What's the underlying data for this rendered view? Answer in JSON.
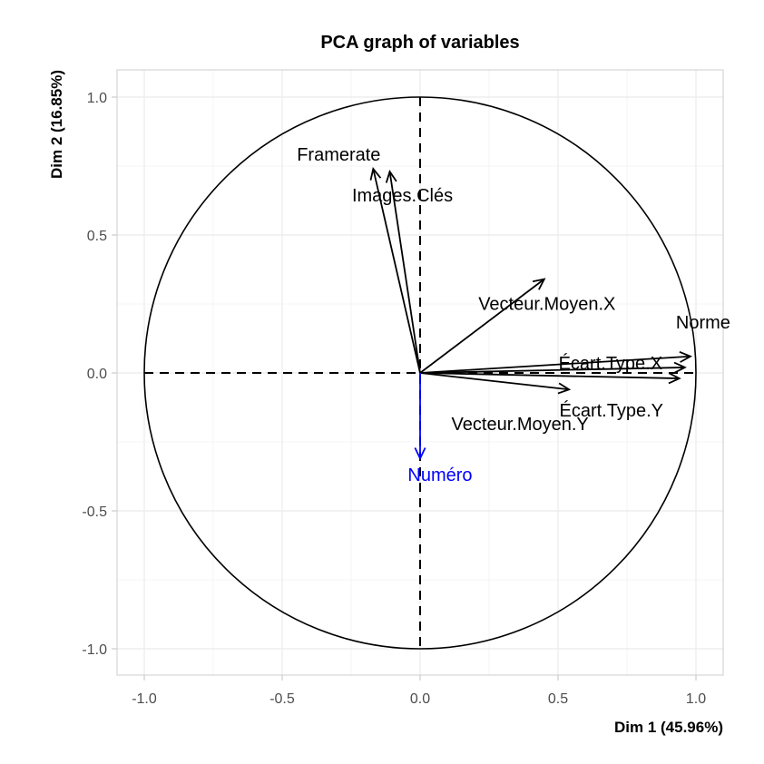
{
  "chart_data": {
    "type": "scatter",
    "title": "PCA graph of variables",
    "xlabel": "Dim 1 (45.96%)",
    "ylabel": "Dim 2 (16.85%)",
    "xlim": [
      -1.1,
      1.1
    ],
    "ylim": [
      -1.1,
      1.1
    ],
    "x_ticks": [
      -1.0,
      -0.5,
      0.0,
      0.5,
      1.0
    ],
    "y_ticks": [
      -1.0,
      -0.5,
      0.0,
      0.5,
      1.0
    ],
    "x_tick_labels": [
      "-1.0",
      "-0.5",
      "0.0",
      "0.5",
      "1.0"
    ],
    "y_tick_labels": [
      "-1.0",
      "-0.5",
      "0.0",
      "0.5",
      "1.0"
    ],
    "grid": true,
    "unit_circle": true,
    "variables": [
      {
        "name": "Framerate",
        "x": -0.17,
        "y": 0.74,
        "color": "#000000"
      },
      {
        "name": "Images.Clés",
        "x": -0.11,
        "y": 0.73,
        "color": "#000000"
      },
      {
        "name": "Vecteur.Moyen.X",
        "x": 0.45,
        "y": 0.34,
        "color": "#000000"
      },
      {
        "name": "Norme",
        "x": 0.98,
        "y": 0.06,
        "color": "#000000"
      },
      {
        "name": "Écart.Type.X",
        "x": 0.96,
        "y": 0.02,
        "color": "#000000"
      },
      {
        "name": "Écart.Type.Y",
        "x": 0.94,
        "y": -0.02,
        "color": "#000000"
      },
      {
        "name": "Vecteur.Moyen.Y",
        "x": 0.54,
        "y": -0.06,
        "color": "#000000"
      },
      {
        "name": "Numéro",
        "x": 0.0,
        "y": -0.31,
        "color": "#0000ff"
      }
    ]
  }
}
